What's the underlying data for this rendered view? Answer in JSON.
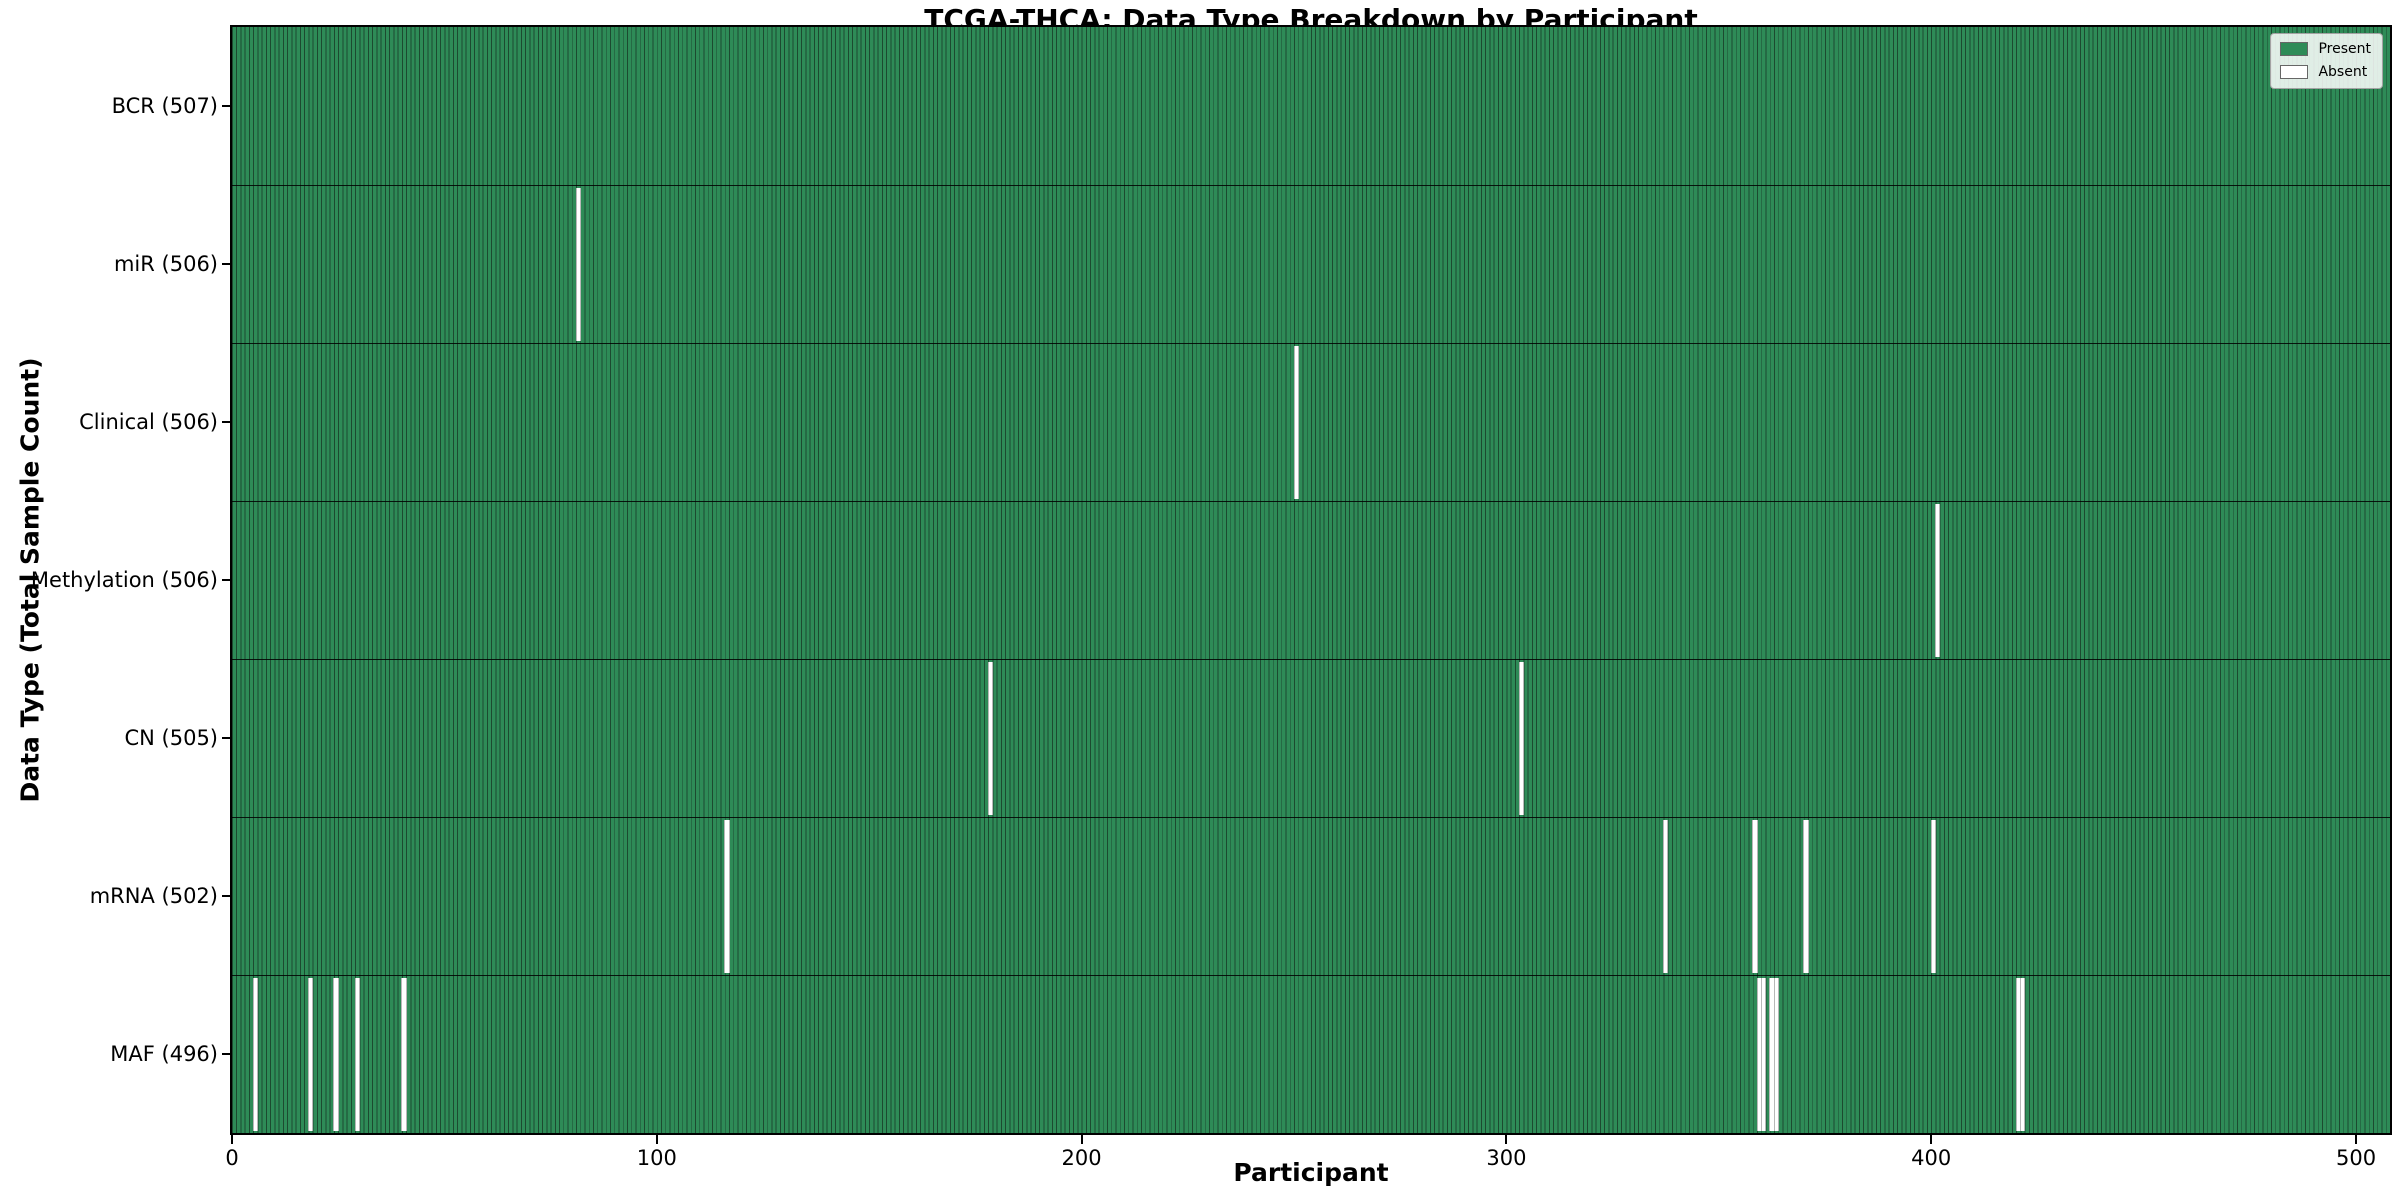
{
  "title": "TCGA-THCA: Data Type Breakdown by Participant",
  "chart_data": {
    "type": "heatmap",
    "title": "TCGA-THCA: Data Type Breakdown by Participant",
    "xlabel": "Participant",
    "ylabel": "Data Type (Total Sample Count)",
    "x_ticks": [
      0,
      100,
      200,
      300,
      400,
      500
    ],
    "xlim": [
      0,
      508
    ],
    "n_participants": 507,
    "grid": false,
    "legend_position": "upper right",
    "legend": {
      "entries": [
        {
          "label": "Present",
          "color": "#2e8b57"
        },
        {
          "label": "Absent",
          "color": "#ffffff"
        }
      ]
    },
    "rows": [
      {
        "data_type": "BCR",
        "label": "BCR (507)",
        "present_count": 507,
        "absent_participants": []
      },
      {
        "data_type": "miR",
        "label": "miR (506)",
        "present_count": 506,
        "absent_participants": [
          81
        ]
      },
      {
        "data_type": "Clinical",
        "label": "Clinical (506)",
        "present_count": 506,
        "absent_participants": [
          250
        ]
      },
      {
        "data_type": "Methylation",
        "label": "Methylation (506)",
        "present_count": 506,
        "absent_participants": [
          401
        ]
      },
      {
        "data_type": "CN",
        "label": "CN (505)",
        "present_count": 505,
        "absent_participants": [
          178,
          303
        ]
      },
      {
        "data_type": "mRNA",
        "label": "mRNA (502)",
        "present_count": 502,
        "absent_participants": [
          116,
          337,
          358,
          370,
          400
        ]
      },
      {
        "data_type": "MAF",
        "label": "MAF (496)",
        "present_count": 496,
        "absent_participants": [
          5,
          18,
          24,
          29,
          40,
          359,
          360,
          362,
          363,
          420,
          421
        ]
      }
    ],
    "colors": {
      "present_fill": "#2e8b57",
      "present_edge": "#1c4a30",
      "absent_fill": "#ffffff",
      "absent_edge": "#b8b8b8",
      "frame": "#000000"
    }
  }
}
